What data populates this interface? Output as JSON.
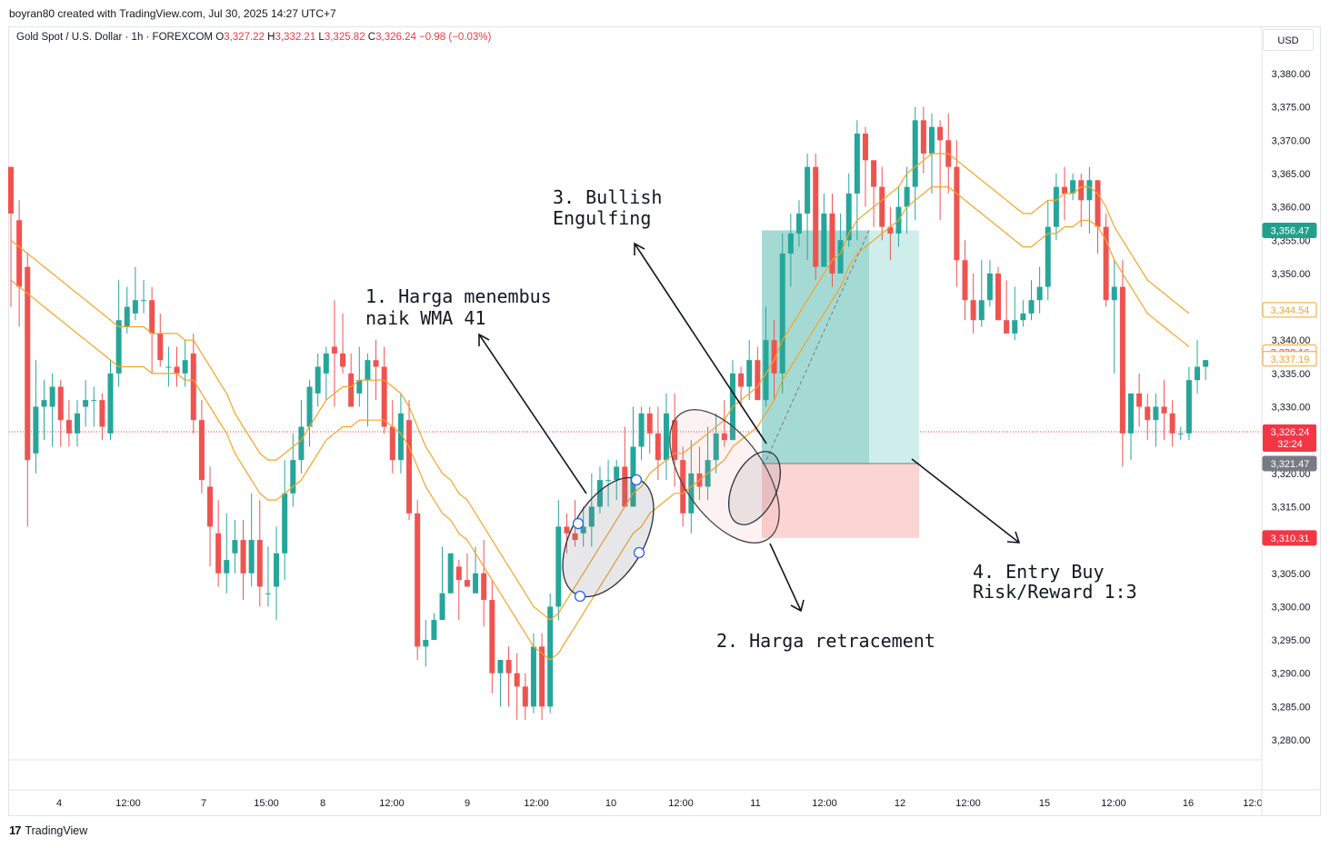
{
  "header": {
    "attribution": "boyran80 created with TradingView.com, Jul 30, 2025 14:27 UTC+7",
    "symbol": "Gold Spot / U.S. Dollar · 1h · FOREXCOM",
    "open_label": "O",
    "open": "3,327.22",
    "high_label": "H",
    "high": "3,332.21",
    "low_label": "L",
    "low": "3,325.82",
    "close_label": "C",
    "close": "3,326.24",
    "change": "−0.98 (−0.03%)",
    "currency": "USD"
  },
  "footer": {
    "brand": "TradingView"
  },
  "colors": {
    "up": "#26a69a",
    "down": "#ef5350",
    "wma": "#f7a325",
    "target_zone": "#9cd8d1",
    "stop_zone": "#fcd4d4",
    "grid": "#e0e3eb"
  },
  "annotations": {
    "a1_line1": "1. Harga menembus",
    "a1_line2": "naik WMA 41",
    "a2": "2. Harga retracement",
    "a3_line1": "3. Bullish",
    "a3_line2": "Engulfing",
    "a4_line1": "4. Entry Buy",
    "a4_line2": "Risk/Reward 1:3"
  },
  "price_badges": {
    "target": "3,356.47",
    "wma1": "3,344.54",
    "wma2a": "3,338.16",
    "wma2b": "3,337.19",
    "last": "3,326.24",
    "countdown": "32:24",
    "entry": "3,321.47",
    "stop": "3,310.31"
  },
  "chart_data": {
    "type": "candlestick",
    "y_axis": {
      "min": 3275,
      "max": 3385,
      "ticks": [
        "3,380.00",
        "3,375.00",
        "3,370.00",
        "3,365.00",
        "3,360.00",
        "3,355.00",
        "3,350.00",
        "3,345.00",
        "3,340.00",
        "3,335.00",
        "3,330.00",
        "3,325.00",
        "3,320.00",
        "3,315.00",
        "3,310.00",
        "3,305.00",
        "3,300.00",
        "3,295.00",
        "3,290.00",
        "3,285.00",
        "3,280.00"
      ]
    },
    "x_ticks": [
      "4",
      "12:00",
      "7",
      "15:00",
      "8",
      "12:00",
      "9",
      "12:00",
      "10",
      "12:00",
      "11",
      "12:00",
      "12",
      "12:00",
      "15",
      "12:00",
      "16",
      "12:0"
    ],
    "candles": [
      [
        3366,
        3359,
        3366,
        3345
      ],
      [
        3358,
        3348,
        3361,
        3342
      ],
      [
        3351,
        3322,
        3353,
        3312
      ],
      [
        3323,
        3330,
        3337,
        3320
      ],
      [
        3330,
        3331,
        3334,
        3325
      ],
      [
        3330,
        3333,
        3335,
        3324
      ],
      [
        3333,
        3328,
        3334,
        3324
      ],
      [
        3328,
        3326,
        3331,
        3324
      ],
      [
        3326,
        3329,
        3331,
        3324
      ],
      [
        3330,
        3331,
        3334,
        3327
      ],
      [
        3331,
        3331,
        3333,
        3327
      ],
      [
        3331,
        3327,
        3332,
        3325
      ],
      [
        3326,
        3335,
        3337,
        3325
      ],
      [
        3335,
        3343,
        3349,
        3333
      ],
      [
        3342,
        3345,
        3348,
        3341
      ],
      [
        3344,
        3346,
        3351,
        3343
      ],
      [
        3346,
        3346,
        3349,
        3344
      ],
      [
        3346,
        3341,
        3348,
        3335
      ],
      [
        3341,
        3337,
        3344,
        3336
      ],
      [
        3336,
        3336,
        3339,
        3333
      ],
      [
        3336,
        3335,
        3339,
        3333
      ],
      [
        3335,
        3337,
        3340,
        3333
      ],
      [
        3338,
        3328,
        3341,
        3326
      ],
      [
        3328,
        3319,
        3331,
        3317
      ],
      [
        3318,
        3312,
        3321,
        3306
      ],
      [
        3311,
        3305,
        3316,
        3303
      ],
      [
        3305,
        3307,
        3314,
        3302
      ],
      [
        3308,
        3310,
        3313,
        3305
      ],
      [
        3310,
        3305,
        3313,
        3301
      ],
      [
        3305,
        3310,
        3317,
        3303
      ],
      [
        3310,
        3303,
        3316,
        3300
      ],
      [
        3302,
        3302,
        3309,
        3300
      ],
      [
        3303,
        3308,
        3312,
        3298
      ],
      [
        3308,
        3317,
        3322,
        3304
      ],
      [
        3317,
        3322,
        3326,
        3315
      ],
      [
        3322,
        3327,
        3331,
        3320
      ],
      [
        3327,
        3333,
        3334,
        3324
      ],
      [
        3332,
        3336,
        3338,
        3330
      ],
      [
        3335,
        3338,
        3339,
        3331
      ],
      [
        3339,
        3338,
        3346,
        3330
      ],
      [
        3338,
        3336,
        3344,
        3335
      ],
      [
        3335,
        3330,
        3338,
        3330
      ],
      [
        3332,
        3334,
        3339,
        3330
      ],
      [
        3334,
        3337,
        3338,
        3327
      ],
      [
        3337,
        3336,
        3340,
        3331
      ],
      [
        3336,
        3327,
        3339,
        3326
      ],
      [
        3327,
        3322,
        3331,
        3320
      ],
      [
        3322,
        3329,
        3332,
        3320
      ],
      [
        3328,
        3314,
        3331,
        3313
      ],
      [
        3314,
        3294,
        3316,
        3292
      ],
      [
        3294,
        3295,
        3298,
        3291
      ],
      [
        3295,
        3298,
        3299,
        3295
      ],
      [
        3298,
        3302,
        3309,
        3300
      ],
      [
        3302,
        3308,
        3306,
        3302
      ],
      [
        3306,
        3304,
        3307,
        3298
      ],
      [
        3304,
        3303,
        3308,
        3303
      ],
      [
        3302,
        3305,
        3309,
        3302
      ],
      [
        3305,
        3301,
        3310,
        3297
      ],
      [
        3301,
        3290,
        3304,
        3287
      ],
      [
        3290,
        3292,
        3292,
        3285
      ],
      [
        3292,
        3290,
        3294,
        3285
      ],
      [
        3290,
        3288,
        3293,
        3283
      ],
      [
        3288,
        3285,
        3290,
        3283
      ],
      [
        3285,
        3294,
        3296,
        3284
      ],
      [
        3294,
        3285,
        3296,
        3283
      ],
      [
        3285,
        3300,
        3302,
        3284
      ],
      [
        3300,
        3312,
        3316,
        3298
      ],
      [
        3312,
        3311,
        3314,
        3308
      ],
      [
        3311,
        3310,
        3316,
        3309
      ],
      [
        3311,
        3312,
        3315,
        3309
      ],
      [
        3312,
        3315,
        3320,
        3309
      ],
      [
        3315,
        3319,
        3321,
        3314
      ],
      [
        3319,
        3319,
        3322,
        3315
      ],
      [
        3319,
        3321,
        3322,
        3316
      ],
      [
        3321,
        3315,
        3327,
        3315
      ],
      [
        3315,
        3324,
        3330,
        3316
      ],
      [
        3324,
        3329,
        3330,
        3322
      ],
      [
        3329,
        3326,
        3330,
        3323
      ],
      [
        3326,
        3322,
        3330,
        3319
      ],
      [
        3322,
        3329,
        3332,
        3319
      ],
      [
        3328,
        3322,
        3332,
        3318
      ],
      [
        3322,
        3314,
        3324,
        3312
      ],
      [
        3314,
        3320,
        3325,
        3311
      ],
      [
        3320,
        3318,
        3324,
        3316
      ],
      [
        3318,
        3322,
        3327,
        3316
      ],
      [
        3322,
        3326,
        3329,
        3320
      ],
      [
        3326,
        3325,
        3331,
        3324
      ],
      [
        3325,
        3335,
        3337,
        3325
      ],
      [
        3335,
        3333,
        3336,
        3330
      ],
      [
        3333,
        3337,
        3340,
        3331
      ],
      [
        3337,
        3331,
        3339,
        3332
      ],
      [
        3331,
        3340,
        3345,
        3330
      ],
      [
        3340,
        3335,
        3343,
        3331
      ],
      [
        3335,
        3353,
        3356,
        3332
      ],
      [
        3353,
        3356,
        3359,
        3348
      ],
      [
        3356,
        3359,
        3361,
        3354
      ],
      [
        3359,
        3366,
        3368,
        3352
      ],
      [
        3366,
        3351,
        3368,
        3349
      ],
      [
        3351,
        3359,
        3362,
        3351
      ],
      [
        3359,
        3350,
        3362,
        3348
      ],
      [
        3350,
        3355,
        3359,
        3352
      ],
      [
        3355,
        3362,
        3365,
        3354
      ],
      [
        3362,
        3371,
        3373,
        3355
      ],
      [
        3371,
        3367,
        3372,
        3360
      ],
      [
        3367,
        3363,
        3366,
        3357
      ],
      [
        3363,
        3357,
        3366,
        3355
      ],
      [
        3357,
        3356,
        3360,
        3352
      ],
      [
        3356,
        3360,
        3363,
        3354
      ],
      [
        3360,
        3363,
        3366,
        3356
      ],
      [
        3363,
        3373,
        3375,
        3358
      ],
      [
        3373,
        3368,
        3375,
        3365
      ],
      [
        3368,
        3372,
        3374,
        3362
      ],
      [
        3372,
        3370,
        3373,
        3358
      ],
      [
        3370,
        3366,
        3374,
        3362
      ],
      [
        3366,
        3352,
        3370,
        3348
      ],
      [
        3352,
        3346,
        3355,
        3343
      ],
      [
        3346,
        3343,
        3350,
        3341
      ],
      [
        3343,
        3346,
        3352,
        3342
      ],
      [
        3346,
        3350,
        3352,
        3345
      ],
      [
        3350,
        3343,
        3351,
        3343
      ],
      [
        3343,
        3341,
        3349,
        3341
      ],
      [
        3341,
        3343,
        3348,
        3340
      ],
      [
        3343,
        3344,
        3346,
        3342
      ],
      [
        3344,
        3346,
        3349,
        3343
      ],
      [
        3346,
        3348,
        3351,
        3344
      ],
      [
        3348,
        3357,
        3361,
        3346
      ],
      [
        3357,
        3363,
        3365,
        3355
      ],
      [
        3363,
        3362,
        3366,
        3358
      ],
      [
        3362,
        3364,
        3365,
        3361
      ],
      [
        3364,
        3361,
        3365,
        3357
      ],
      [
        3361,
        3364,
        3366,
        3356
      ],
      [
        3364,
        3357,
        3364,
        3353
      ],
      [
        3357,
        3346,
        3359,
        3345
      ],
      [
        3346,
        3348,
        3352,
        3335
      ],
      [
        3348,
        3326,
        3352,
        3321
      ],
      [
        3326,
        3332,
        3332,
        3322
      ],
      [
        3332,
        3330,
        3335,
        3327
      ],
      [
        3330,
        3328,
        3332,
        3325
      ],
      [
        3328,
        3330,
        3332,
        3324
      ],
      [
        3330,
        3329,
        3334,
        3325
      ],
      [
        3329,
        3326,
        3331,
        3324
      ],
      [
        3326,
        3326,
        3327,
        3325
      ],
      [
        3326,
        3334,
        3336,
        3325
      ],
      [
        3334,
        3336,
        3340,
        3332
      ],
      [
        3336,
        3337,
        3337,
        3334
      ]
    ],
    "wma41": [
      3349,
      3348,
      3347,
      3346,
      3345,
      3344,
      3343,
      3342,
      3341,
      3340,
      3339,
      3338,
      3337,
      3336,
      3336,
      3336,
      3336,
      3335,
      3335,
      3335,
      3335,
      3334,
      3334,
      3332,
      3330,
      3328,
      3326,
      3323,
      3321,
      3319,
      3317,
      3316,
      3316,
      3317,
      3318,
      3319,
      3321,
      3323,
      3325,
      3326,
      3327,
      3327,
      3328,
      3328,
      3328,
      3328,
      3327,
      3326,
      3324,
      3321,
      3318,
      3316,
      3314,
      3313,
      3311,
      3310,
      3308,
      3306,
      3304,
      3302,
      3300,
      3298,
      3296,
      3294,
      3293,
      3292,
      3293,
      3295,
      3297,
      3299,
      3301,
      3303,
      3305,
      3307,
      3309,
      3311,
      3312,
      3314,
      3315,
      3316,
      3317,
      3317,
      3318,
      3319,
      3320,
      3321,
      3322,
      3324,
      3325,
      3326,
      3327,
      3329,
      3331,
      3334,
      3336,
      3338,
      3340,
      3342,
      3344,
      3346,
      3348,
      3351,
      3353,
      3354,
      3355,
      3356,
      3357,
      3358,
      3360,
      3361,
      3362,
      3363,
      3363,
      3363,
      3362,
      3361,
      3360,
      3359,
      3358,
      3357,
      3356,
      3355,
      3354,
      3354,
      3355,
      3356,
      3356,
      3357,
      3357,
      3358,
      3358,
      3357,
      3355,
      3352,
      3350,
      3348,
      3346,
      3344,
      3343,
      3342,
      3341,
      3340,
      3339
    ]
  }
}
